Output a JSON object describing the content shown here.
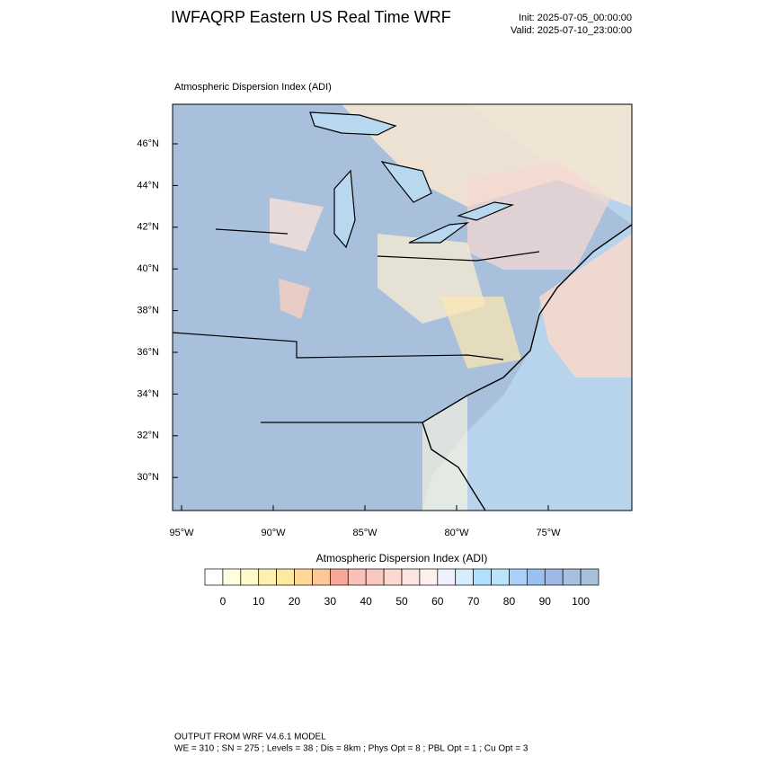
{
  "header": {
    "title": "IWFAQRP Eastern US Real Time WRF",
    "init": "Init: 2025-07-05_00:00:00",
    "valid": "Valid: 2025-07-10_23:00:00"
  },
  "map": {
    "title": "Atmospheric Dispersion Index   (ADI)",
    "lat_labels": [
      "46°N",
      "44°N",
      "42°N",
      "40°N",
      "38°N",
      "36°N",
      "34°N",
      "32°N",
      "30°N"
    ],
    "lon_labels": [
      "95°W",
      "90°W",
      "85°W",
      "80°W",
      "75°W"
    ]
  },
  "colorbar": {
    "title": "Atmospheric Dispersion Index  (ADI)",
    "ticks": [
      0,
      10,
      20,
      30,
      40,
      50,
      60,
      70,
      80,
      90,
      100
    ],
    "colors": [
      "#ffffff",
      "#ffffe0",
      "#fff8c8",
      "#fff0b0",
      "#ffe8a0",
      "#ffd898",
      "#fcc898",
      "#f8a898",
      "#f8c0b8",
      "#f8c8c0",
      "#fcd8d0",
      "#fce4e0",
      "#fff0f0",
      "#f0f0ff",
      "#d8ecff",
      "#b0e0ff",
      "#b8e4fc",
      "#a8d0f8",
      "#98c0f0",
      "#a0b8e8",
      "#a8c0e0",
      "#a8c0d8"
    ]
  },
  "footer": {
    "line1": "OUTPUT FROM WRF V4.6.1 MODEL",
    "line2": "WE = 310 ; SN = 275 ; Levels = 38 ; Dis = 8km ; Phys Opt = 8 ; PBL Opt = 1 ; Cu Opt = 3"
  }
}
